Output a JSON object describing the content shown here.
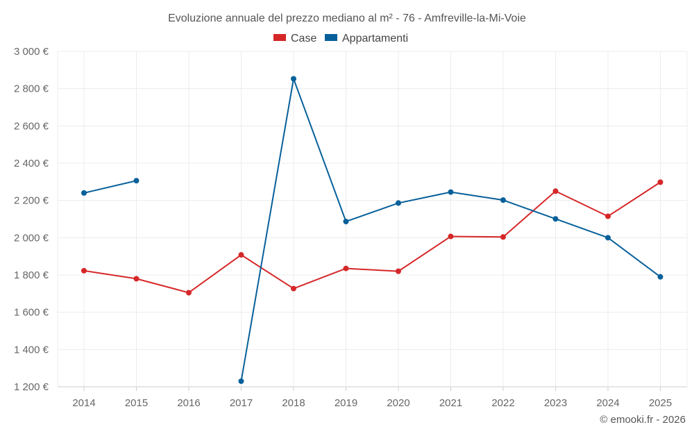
{
  "chart_data": {
    "type": "line",
    "title": "Evoluzione annuale del prezzo mediano al m² - 76 - Amfreville-la-Mi-Voie",
    "xlabel": "",
    "ylabel": "",
    "categories": [
      "2014",
      "2015",
      "2016",
      "2017",
      "2018",
      "2019",
      "2020",
      "2021",
      "2022",
      "2023",
      "2024",
      "2025"
    ],
    "ylim": [
      1200,
      3000
    ],
    "yticks": [
      1200,
      1400,
      1600,
      1800,
      2000,
      2200,
      2400,
      2600,
      2800,
      3000
    ],
    "ytick_labels": [
      "1 200 €",
      "1 400 €",
      "1 600 €",
      "1 800 €",
      "2 000 €",
      "2 200 €",
      "2 400 €",
      "2 600 €",
      "2 800 €",
      "3 000 €"
    ],
    "grid": true,
    "legend_position": "top-center",
    "series": [
      {
        "name": "Case",
        "color": "#d62728",
        "values": [
          1823,
          1780,
          1705,
          1908,
          1727,
          1835,
          1820,
          2007,
          2004,
          2250,
          2115,
          2298
        ]
      },
      {
        "name": "Appartamenti",
        "color": "#07609a",
        "values": [
          2240,
          2306,
          null,
          1230,
          2853,
          2087,
          2186,
          2245,
          2202,
          2101,
          2000,
          1790
        ]
      }
    ],
    "credit": "© emooki.fr - 2026"
  }
}
